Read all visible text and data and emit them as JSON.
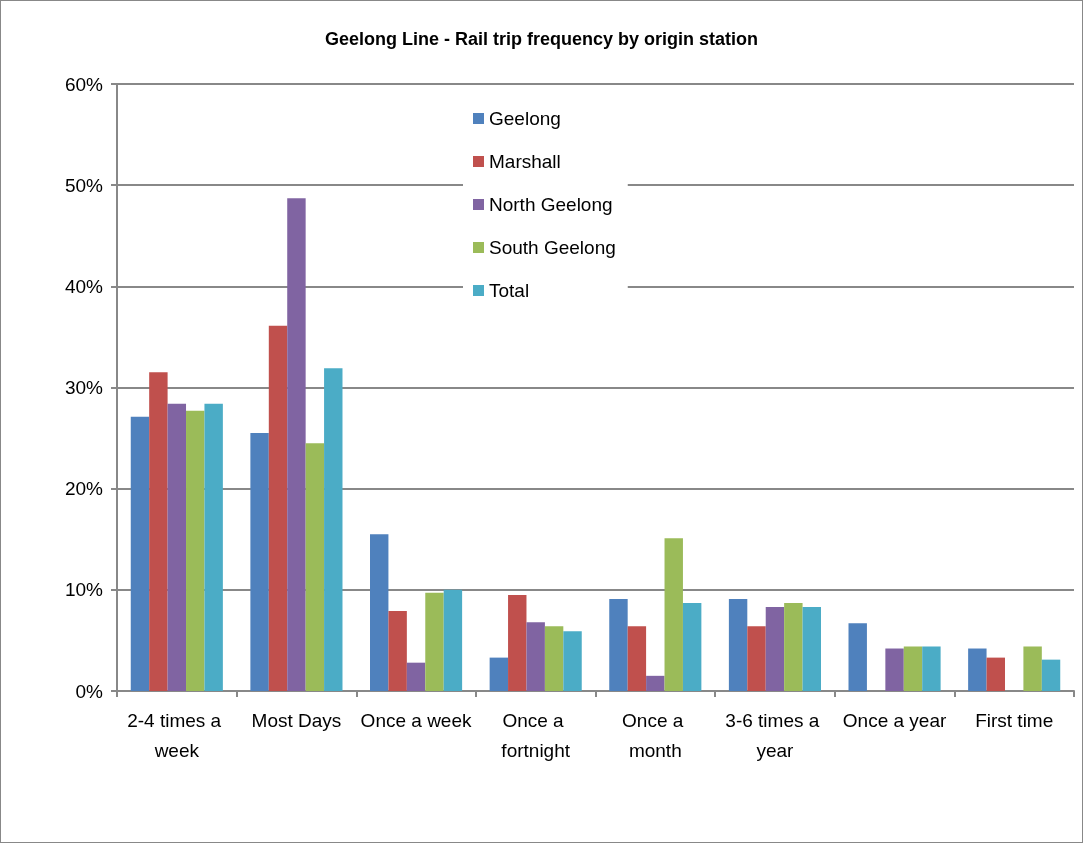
{
  "chart_data": {
    "type": "bar",
    "title": "Geelong Line - Rail trip frequency by origin station",
    "categories": [
      "2-4 times a week",
      "Most Days",
      "Once a week",
      "Once a fortnight",
      "Once a month",
      "3-6 times a year",
      "Once a year",
      "First time"
    ],
    "series": [
      {
        "name": "Geelong",
        "color": "#4f81bd",
        "values": [
          27.1,
          25.5,
          15.5,
          3.3,
          9.1,
          9.1,
          6.7,
          4.2
        ]
      },
      {
        "name": "Marshall",
        "color": "#c0504d",
        "values": [
          31.5,
          36.1,
          7.9,
          9.5,
          6.4,
          6.4,
          null,
          3.3
        ]
      },
      {
        "name": "North Geelong",
        "color": "#8064a2",
        "values": [
          28.4,
          48.7,
          2.8,
          6.8,
          1.5,
          8.3,
          4.2,
          null
        ]
      },
      {
        "name": "South Geelong",
        "color": "#9bbb59",
        "values": [
          27.7,
          24.5,
          9.7,
          6.4,
          15.1,
          8.7,
          4.4,
          4.4
        ]
      },
      {
        "name": "Total",
        "color": "#4bacc6",
        "values": [
          28.4,
          31.9,
          10.0,
          5.9,
          8.7,
          8.3,
          4.4,
          3.1
        ]
      }
    ],
    "ylim": [
      0,
      60
    ],
    "yticks": [
      {
        "value": 0,
        "label": "0%"
      },
      {
        "value": 10,
        "label": "10%"
      },
      {
        "value": 20,
        "label": "20%"
      },
      {
        "value": 30,
        "label": "30%"
      },
      {
        "value": 40,
        "label": "40%"
      },
      {
        "value": 50,
        "label": "50%"
      },
      {
        "value": 60,
        "label": "60%"
      }
    ],
    "grid": "y",
    "legend": "top"
  }
}
